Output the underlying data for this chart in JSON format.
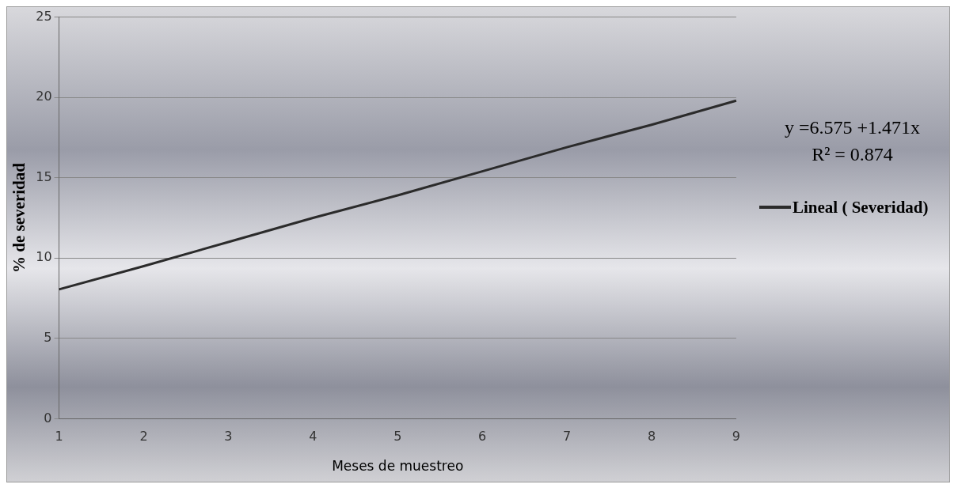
{
  "chart_data": {
    "type": "line",
    "xlabel": "Meses de muestreo",
    "ylabel": "% de severidad",
    "categories": [
      "1",
      "2",
      "3",
      "4",
      "5",
      "6",
      "7",
      "8",
      "9"
    ],
    "series": [
      {
        "name": "Lineal ( Severidad)",
        "color": "#2b2b2b",
        "values": [
          8.05,
          9.5,
          11.0,
          12.5,
          13.9,
          15.4,
          16.9,
          18.3,
          19.8
        ]
      }
    ],
    "ylim": [
      0,
      25
    ],
    "yticks": [
      0,
      5,
      10,
      15,
      20,
      25
    ],
    "grid": "y",
    "legend": "right",
    "marker": "none",
    "line_style": "solid",
    "annotations": [
      "y =6.575 +1.471x",
      "R² = 0.874"
    ]
  }
}
